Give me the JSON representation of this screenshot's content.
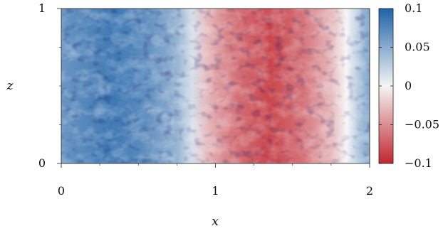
{
  "chart_data": {
    "type": "heatmap",
    "title": "",
    "xlabel": "x",
    "ylabel": "z",
    "xlim": [
      0,
      2
    ],
    "ylim": [
      0,
      1
    ],
    "x_ticks": [
      0,
      1,
      2
    ],
    "x_tick_labels": [
      "0",
      "1",
      "2"
    ],
    "y_ticks": [
      0,
      1
    ],
    "y_tick_labels": [
      "0",
      "1"
    ],
    "colorbar": {
      "range": [
        -0.1,
        0.1
      ],
      "ticks": [
        0.1,
        0.05,
        0,
        -0.05,
        -0.1
      ],
      "tick_labels": [
        "0.1",
        "0.05",
        "0",
        "−0.05",
        "−0.1"
      ],
      "colormap": "RdBu",
      "color_low": "#c0262e",
      "color_mid": "#f5f5f5",
      "color_high": "#1f63a8"
    },
    "field_profile_x": [
      0.0,
      0.15,
      0.35,
      0.55,
      0.75,
      0.85,
      0.95,
      1.1,
      1.35,
      1.55,
      1.75,
      1.85,
      1.95,
      2.0
    ],
    "field_profile_value": [
      0.065,
      0.075,
      0.085,
      0.07,
      0.045,
      0.015,
      -0.03,
      -0.06,
      -0.085,
      -0.065,
      -0.03,
      0.0,
      0.04,
      0.055
    ]
  }
}
